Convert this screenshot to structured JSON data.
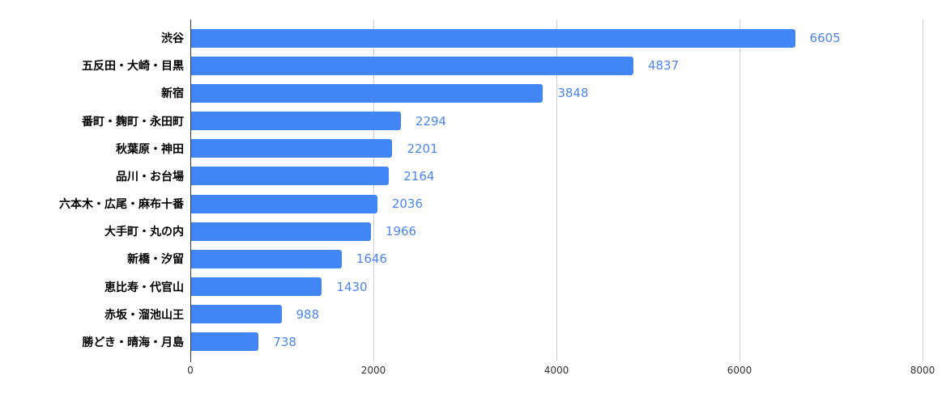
{
  "chart_data": {
    "type": "bar",
    "orientation": "horizontal",
    "title": "",
    "xlabel": "",
    "ylabel": "",
    "categories": [
      "渋谷",
      "五反田・大崎・目黒",
      "新宿",
      "番町・麹町・永田町",
      "秋葉原・神田",
      "品川・お台場",
      "六本木・広尾・麻布十番",
      "大手町・丸の内",
      "新橋・汐留",
      "恵比寿・代官山",
      "赤坂・溜池山王",
      "勝どき・晴海・月島"
    ],
    "values": [
      6605,
      4837,
      3848,
      2294,
      2201,
      2164,
      2036,
      1966,
      1646,
      1430,
      988,
      738
    ],
    "xlim": [
      0,
      8000
    ],
    "x_ticks": [
      0,
      2000,
      4000,
      6000,
      8000
    ],
    "grid": true,
    "legend": false,
    "data_labels": true,
    "bar_color": "#4285f4",
    "data_label_color": "#4d86f0",
    "gridline_color": "#cccccc",
    "baseline_color": "#333333",
    "category_label_color": "#000000",
    "axis_tick_label_color": "#333333"
  }
}
